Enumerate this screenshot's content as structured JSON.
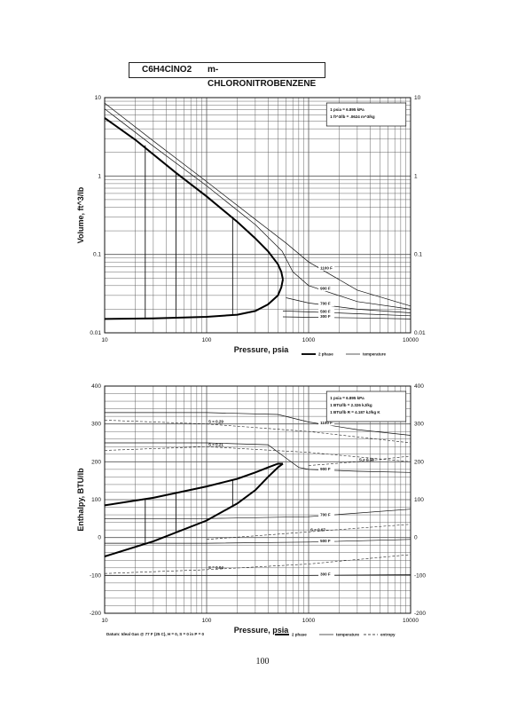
{
  "header": {
    "formula": "C6H4ClNO2",
    "name": "m-CHLORONITROBENZENE"
  },
  "page_number": "100",
  "chart_data": [
    {
      "type": "line",
      "xscale": "log",
      "yscale": "log",
      "xlim": [
        10,
        10000
      ],
      "ylim": [
        0.01,
        10
      ],
      "xlabel": "Pressure,  psia",
      "ylabel": "Volume, ft^3/lb",
      "x_ticks": [
        "10",
        "100",
        "1000",
        "10000"
      ],
      "y_ticks": [
        "0.01",
        "0.1",
        "1",
        "10"
      ],
      "conversion_notes": [
        "1 psia = 6.895 kPa",
        "1 ft^3/lb = .0624 m^3/kg"
      ],
      "legend": [
        "2 phase",
        "temperature"
      ],
      "saturation_liquid": {
        "x": [
          10,
          30,
          100,
          200,
          300,
          400,
          500,
          540,
          560
        ],
        "y": [
          0.015,
          0.0153,
          0.016,
          0.017,
          0.019,
          0.023,
          0.03,
          0.038,
          0.048
        ]
      },
      "saturation_vapor": {
        "x": [
          10,
          20,
          50,
          100,
          200,
          300,
          400,
          500,
          540,
          560
        ],
        "y": [
          5.5,
          2.9,
          1.1,
          0.55,
          0.26,
          0.16,
          0.11,
          0.075,
          0.06,
          0.048
        ]
      },
      "isotherms": [
        {
          "label": "300 F",
          "x": [
            560,
            1000,
            3000,
            10000
          ],
          "y": [
            0.016,
            0.0158,
            0.0155,
            0.015
          ]
        },
        {
          "label": "500 F",
          "x": [
            560,
            1000,
            3000,
            10000
          ],
          "y": [
            0.019,
            0.0185,
            0.0175,
            0.0165
          ]
        },
        {
          "label": "700 F",
          "x": [
            600,
            1000,
            3000,
            10000
          ],
          "y": [
            0.028,
            0.024,
            0.02,
            0.018
          ]
        },
        {
          "label": "900 F",
          "x": [
            10,
            30,
            100,
            300,
            550,
            700,
            1000,
            3000,
            10000
          ],
          "y": [
            7.2,
            2.4,
            0.75,
            0.24,
            0.11,
            0.06,
            0.04,
            0.025,
            0.02
          ]
        },
        {
          "label": "1100 F",
          "x": [
            10,
            30,
            100,
            300,
            600,
            1000,
            3000,
            10000
          ],
          "y": [
            8.5,
            2.8,
            0.85,
            0.28,
            0.14,
            0.08,
            0.035,
            0.022
          ]
        }
      ],
      "tie_lines_x": [
        25,
        50,
        180
      ]
    },
    {
      "type": "line",
      "xscale": "log",
      "yscale": "linear",
      "xlim": [
        10,
        10000
      ],
      "ylim": [
        -200,
        400
      ],
      "xlabel": "Pressure,  psia",
      "ylabel": "Enthalpy, BTU/lb",
      "x_ticks": [
        "10",
        "100",
        "1000",
        "10000"
      ],
      "y_ticks": [
        "-200",
        "-100",
        "0",
        "100",
        "200",
        "300",
        "400"
      ],
      "conversion_notes": [
        "1 psia = 6.895 kPa",
        "1 BTU/lb = 2.326 kJ/kg",
        "1 BTU/lb R = 4.187 kJ/kg K"
      ],
      "footnote": "Datum: Ideal Gas @ 77 F (25 C),  H = 0,  S = 0 in P = 0",
      "legend": [
        "2 phase",
        "temperature",
        "entropy"
      ],
      "saturation_liquid": {
        "x": [
          10,
          30,
          100,
          200,
          300,
          400,
          500,
          560
        ],
        "y": [
          -50,
          -10,
          45,
          90,
          125,
          160,
          185,
          195
        ]
      },
      "saturation_vapor": {
        "x": [
          10,
          30,
          100,
          200,
          300,
          400,
          500,
          560
        ],
        "y": [
          85,
          105,
          135,
          155,
          172,
          185,
          195,
          195
        ]
      },
      "isotherms": [
        {
          "label": "300 F",
          "x": [
            10,
            100,
            1000,
            10000
          ],
          "y": [
            -100,
            -100,
            -100,
            -98
          ]
        },
        {
          "label": "500 F",
          "x": [
            10,
            100,
            1000,
            10000
          ],
          "y": [
            -15,
            -15,
            -12,
            -5
          ]
        },
        {
          "label": "700 F",
          "x": [
            10,
            100,
            1000,
            10000
          ],
          "y": [
            50,
            50,
            55,
            75
          ]
        },
        {
          "label": "900 F",
          "x": [
            10,
            100,
            400,
            600,
            800,
            1000,
            3000,
            10000
          ],
          "y": [
            250,
            250,
            245,
            210,
            185,
            180,
            175,
            172
          ]
        },
        {
          "label": "1100 F",
          "x": [
            10,
            100,
            500,
            1000,
            3000,
            10000
          ],
          "y": [
            330,
            330,
            325,
            305,
            285,
            270
          ]
        }
      ],
      "entropy_lines": [
        {
          "label": "S = 0.29",
          "x": [
            10,
            100,
            1000,
            10000
          ],
          "y": [
            310,
            300,
            280,
            250
          ]
        },
        {
          "label": "S = 0.21",
          "x": [
            10,
            100,
            1000,
            10000
          ],
          "y": [
            230,
            240,
            225,
            200
          ]
        },
        {
          "label": "S = 0.18",
          "x": [
            1000,
            3000,
            10000
          ],
          "y": [
            190,
            200,
            215
          ]
        },
        {
          "label": "S = 0.07",
          "x": [
            100,
            1000,
            10000
          ],
          "y": [
            -5,
            15,
            35
          ]
        },
        {
          "label": "S = 0.04",
          "x": [
            10,
            100,
            1000,
            10000
          ],
          "y": [
            -95,
            -85,
            -70,
            -45
          ]
        }
      ],
      "tie_lines_x": [
        25,
        50,
        180
      ]
    }
  ]
}
